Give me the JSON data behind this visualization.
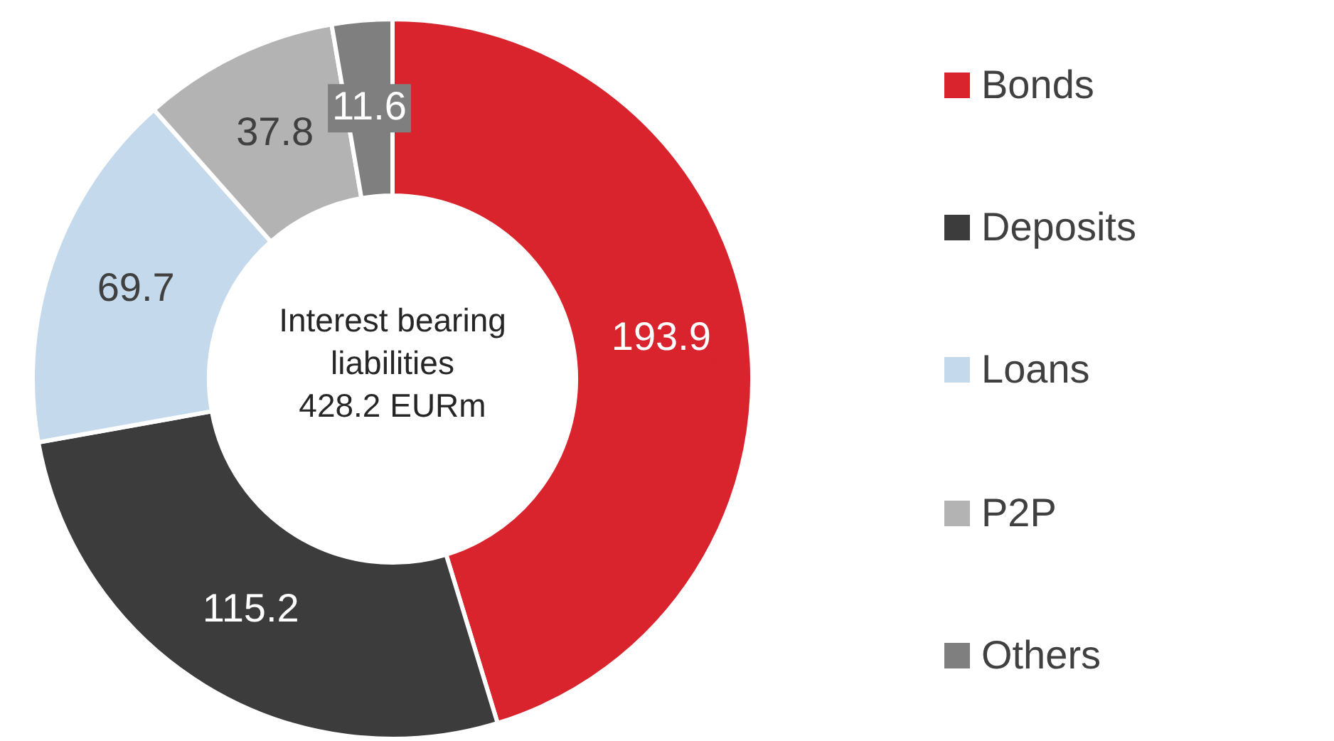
{
  "chart_data": {
    "type": "donut",
    "categories": [
      "Bonds",
      "Deposits",
      "Loans",
      "P2P",
      "Others"
    ],
    "values": [
      193.9,
      115.2,
      69.7,
      37.8,
      11.6
    ],
    "colors": [
      "#d9232d",
      "#3c3c3c",
      "#c5d9ec",
      "#b3b3b3",
      "#7f7f7f"
    ],
    "data_labels": true,
    "legend": "right",
    "annotations": [
      "Interest bearing",
      "liabilities",
      "428.2 EURm"
    ]
  }
}
